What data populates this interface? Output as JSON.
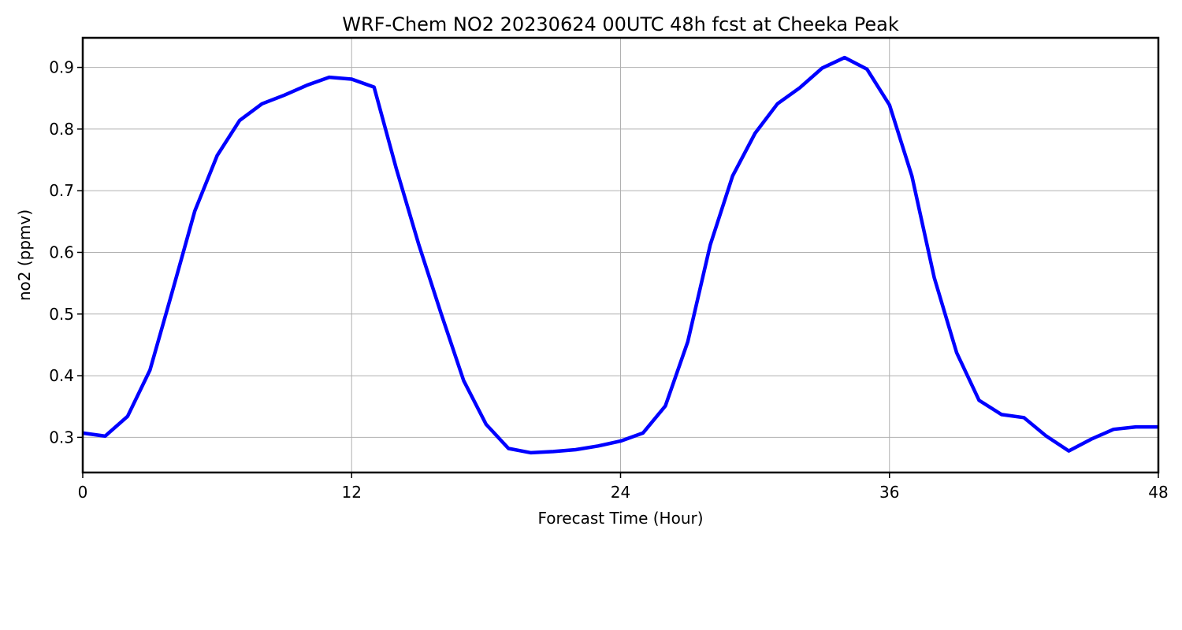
{
  "chart_data": {
    "type": "line",
    "title": "WRF-Chem NO2  20230624 00UTC 48h fcst at Cheeka Peak",
    "xlabel": "Forecast Time (Hour)",
    "ylabel": "no2  (ppmv)",
    "xlim": [
      0,
      48
    ],
    "ylim": [
      0.243,
      0.948
    ],
    "xticks": [
      0,
      12,
      24,
      36,
      48
    ],
    "yticks": [
      0.3,
      0.4,
      0.5,
      0.6,
      0.7,
      0.8,
      0.9
    ],
    "ytick_labels": [
      "0.3",
      "0.4",
      "0.5",
      "0.6",
      "0.7",
      "0.8",
      "0.9"
    ],
    "grid": true,
    "line_color": "#0000ff",
    "series": [
      {
        "x": [
          0,
          1,
          2,
          3,
          4,
          5,
          6,
          7,
          8,
          9,
          10,
          11,
          12,
          13,
          14,
          15,
          16,
          17,
          18,
          19,
          20,
          21,
          22,
          23,
          24,
          25,
          26,
          27,
          28,
          29,
          30,
          31,
          32,
          33,
          34,
          35,
          36,
          37,
          38,
          39,
          40,
          41,
          42,
          43,
          44,
          45,
          46,
          47,
          48
        ],
        "values": [
          0.307,
          0.302,
          0.334,
          0.409,
          0.537,
          0.667,
          0.757,
          0.814,
          0.841,
          0.855,
          0.871,
          0.884,
          0.881,
          0.868,
          0.735,
          0.612,
          0.5,
          0.392,
          0.321,
          0.282,
          0.275,
          0.277,
          0.28,
          0.286,
          0.294,
          0.307,
          0.351,
          0.455,
          0.612,
          0.724,
          0.793,
          0.841,
          0.867,
          0.899,
          0.916,
          0.897,
          0.839,
          0.724,
          0.559,
          0.437,
          0.36,
          0.337,
          0.332,
          0.302,
          0.278,
          0.297,
          0.313,
          0.317,
          0.317
        ]
      }
    ]
  }
}
